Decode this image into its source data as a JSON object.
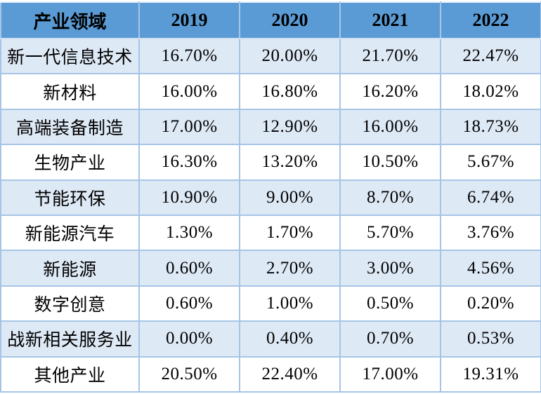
{
  "colors": {
    "header_bg": "#5b9bd5",
    "row_alt_bg": "#dee9f6",
    "row_bg": "#ffffff",
    "border": "#a6c5e6",
    "text": "#000000"
  },
  "table": {
    "header": [
      "产业领域",
      "2019",
      "2020",
      "2021",
      "2022"
    ],
    "rows": [
      {
        "cells": [
          "新一代信息技术",
          "16.70%",
          "20.00%",
          "21.70%",
          "22.47%"
        ]
      },
      {
        "cells": [
          "新材料",
          "16.00%",
          "16.80%",
          "16.20%",
          "18.02%"
        ]
      },
      {
        "cells": [
          "高端装备制造",
          "17.00%",
          "12.90%",
          "16.00%",
          "18.73%"
        ]
      },
      {
        "cells": [
          "生物产业",
          "16.30%",
          "13.20%",
          "10.50%",
          "5.67%"
        ]
      },
      {
        "cells": [
          "节能环保",
          "10.90%",
          "9.00%",
          "8.70%",
          "6.74%"
        ]
      },
      {
        "cells": [
          "新能源汽车",
          "1.30%",
          "1.70%",
          "5.70%",
          "3.76%"
        ]
      },
      {
        "cells": [
          "新能源",
          "0.60%",
          "2.70%",
          "3.00%",
          "4.56%"
        ]
      },
      {
        "cells": [
          "数字创意",
          "0.60%",
          "1.00%",
          "0.50%",
          "0.20%"
        ]
      },
      {
        "cells": [
          "战新相关服务业",
          "0.00%",
          "0.40%",
          "0.70%",
          "0.53%"
        ]
      },
      {
        "cells": [
          "其他产业",
          "20.50%",
          "22.40%",
          "17.00%",
          "19.31%"
        ]
      }
    ]
  },
  "chart_data": {
    "type": "table",
    "title": "",
    "columns": [
      "产业领域",
      "2019",
      "2020",
      "2021",
      "2022"
    ],
    "categories": [
      "2019",
      "2020",
      "2021",
      "2022"
    ],
    "series": [
      {
        "name": "新一代信息技术",
        "values": [
          16.7,
          20.0,
          21.7,
          22.47
        ]
      },
      {
        "name": "新材料",
        "values": [
          16.0,
          16.8,
          16.2,
          18.02
        ]
      },
      {
        "name": "高端装备制造",
        "values": [
          17.0,
          12.9,
          16.0,
          18.73
        ]
      },
      {
        "name": "生物产业",
        "values": [
          16.3,
          13.2,
          10.5,
          5.67
        ]
      },
      {
        "name": "节能环保",
        "values": [
          10.9,
          9.0,
          8.7,
          6.74
        ]
      },
      {
        "name": "新能源汽车",
        "values": [
          1.3,
          1.7,
          5.7,
          3.76
        ]
      },
      {
        "name": "新能源",
        "values": [
          0.6,
          2.7,
          3.0,
          4.56
        ]
      },
      {
        "name": "数字创意",
        "values": [
          0.6,
          1.0,
          0.5,
          0.2
        ]
      },
      {
        "name": "战新相关服务业",
        "values": [
          0.0,
          0.4,
          0.7,
          0.53
        ]
      },
      {
        "name": "其他产业",
        "values": [
          20.5,
          22.4,
          17.0,
          19.31
        ]
      }
    ],
    "unit": "%"
  }
}
